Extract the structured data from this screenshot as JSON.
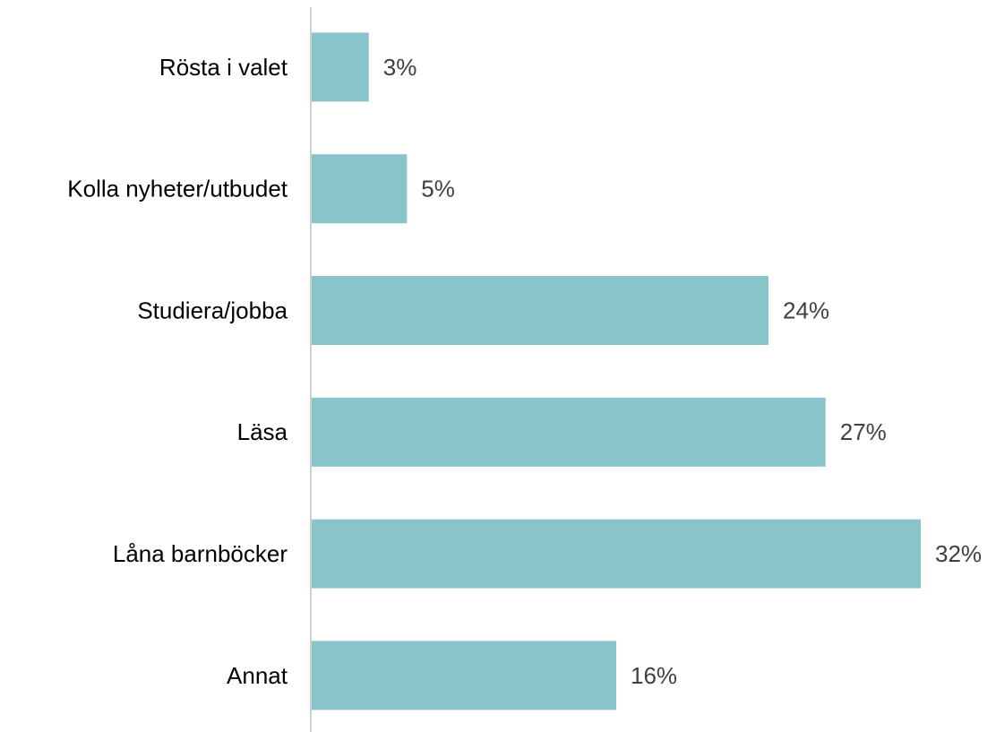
{
  "chart_data": {
    "type": "bar",
    "orientation": "horizontal",
    "categories": [
      "Rösta i valet",
      "Kolla nyheter/utbudet",
      "Studiera/jobba",
      "Läsa",
      "Låna barnböcker",
      "Annat"
    ],
    "values": [
      3,
      5,
      24,
      27,
      32,
      16
    ],
    "value_labels": [
      "3%",
      "5%",
      "24%",
      "27%",
      "32%",
      "16%"
    ],
    "color": "#89c4cb"
  }
}
